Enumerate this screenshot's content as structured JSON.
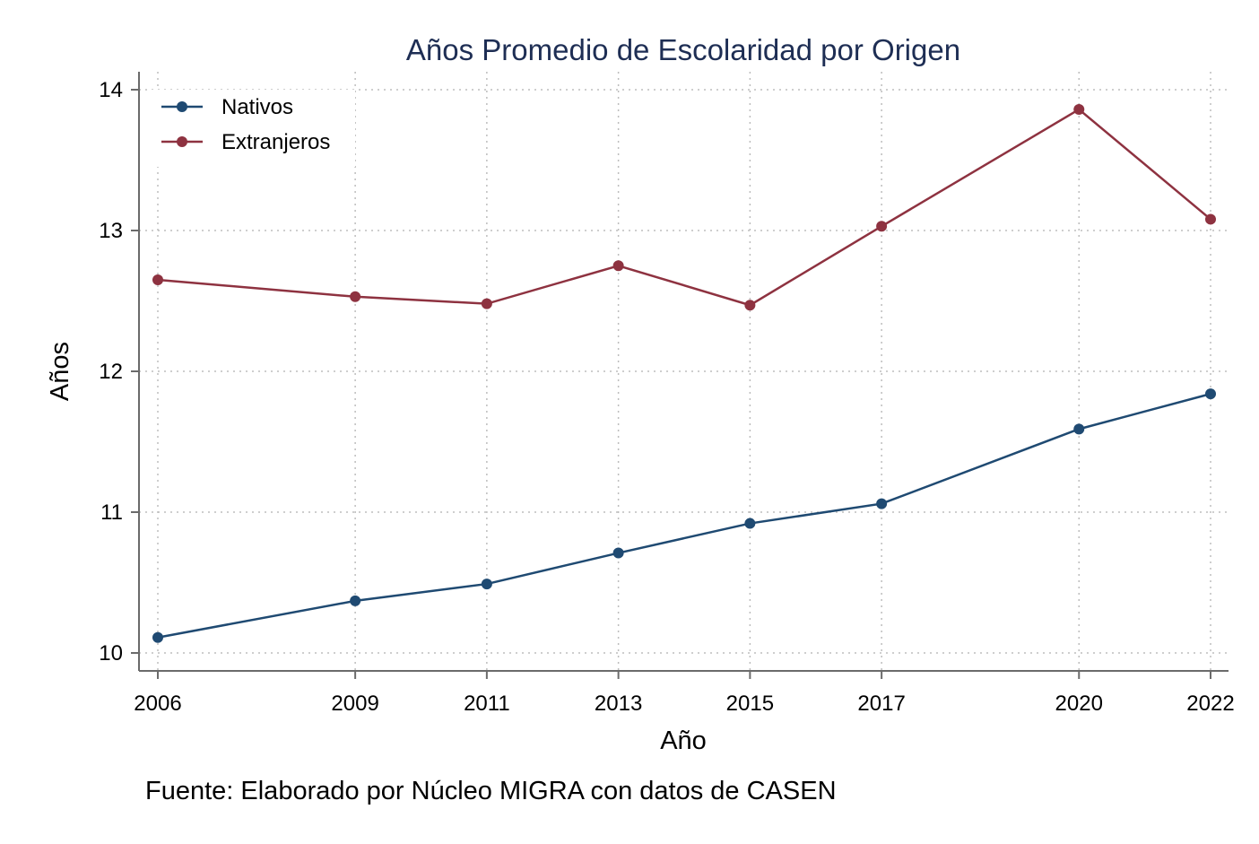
{
  "chart_data": {
    "type": "line",
    "title": "Años Promedio de Escolaridad por Origen",
    "xlabel": "Año",
    "ylabel": "Años",
    "x": [
      2006,
      2009,
      2011,
      2013,
      2015,
      2017,
      2020,
      2022
    ],
    "x_ticks": [
      "2006",
      "2009",
      "2011",
      "2013",
      "2015",
      "2017",
      "2020",
      "2022"
    ],
    "xlim": [
      2006,
      2022
    ],
    "ylim": [
      10,
      14
    ],
    "y_ticks": [
      "10",
      "11",
      "12",
      "13",
      "14"
    ],
    "grid": true,
    "legend_position": "top-left",
    "series": [
      {
        "name": "Nativos",
        "color": "#1f4a72",
        "values": [
          10.11,
          10.37,
          10.49,
          10.71,
          10.92,
          11.06,
          11.59,
          11.84
        ]
      },
      {
        "name": "Extranjeros",
        "color": "#8e3240",
        "values": [
          12.65,
          12.53,
          12.48,
          12.75,
          12.47,
          13.03,
          13.86,
          13.08
        ]
      }
    ],
    "note": "Fuente: Elaborado por Núcleo MIGRA con datos de CASEN",
    "title_color": "#1e2e54"
  }
}
